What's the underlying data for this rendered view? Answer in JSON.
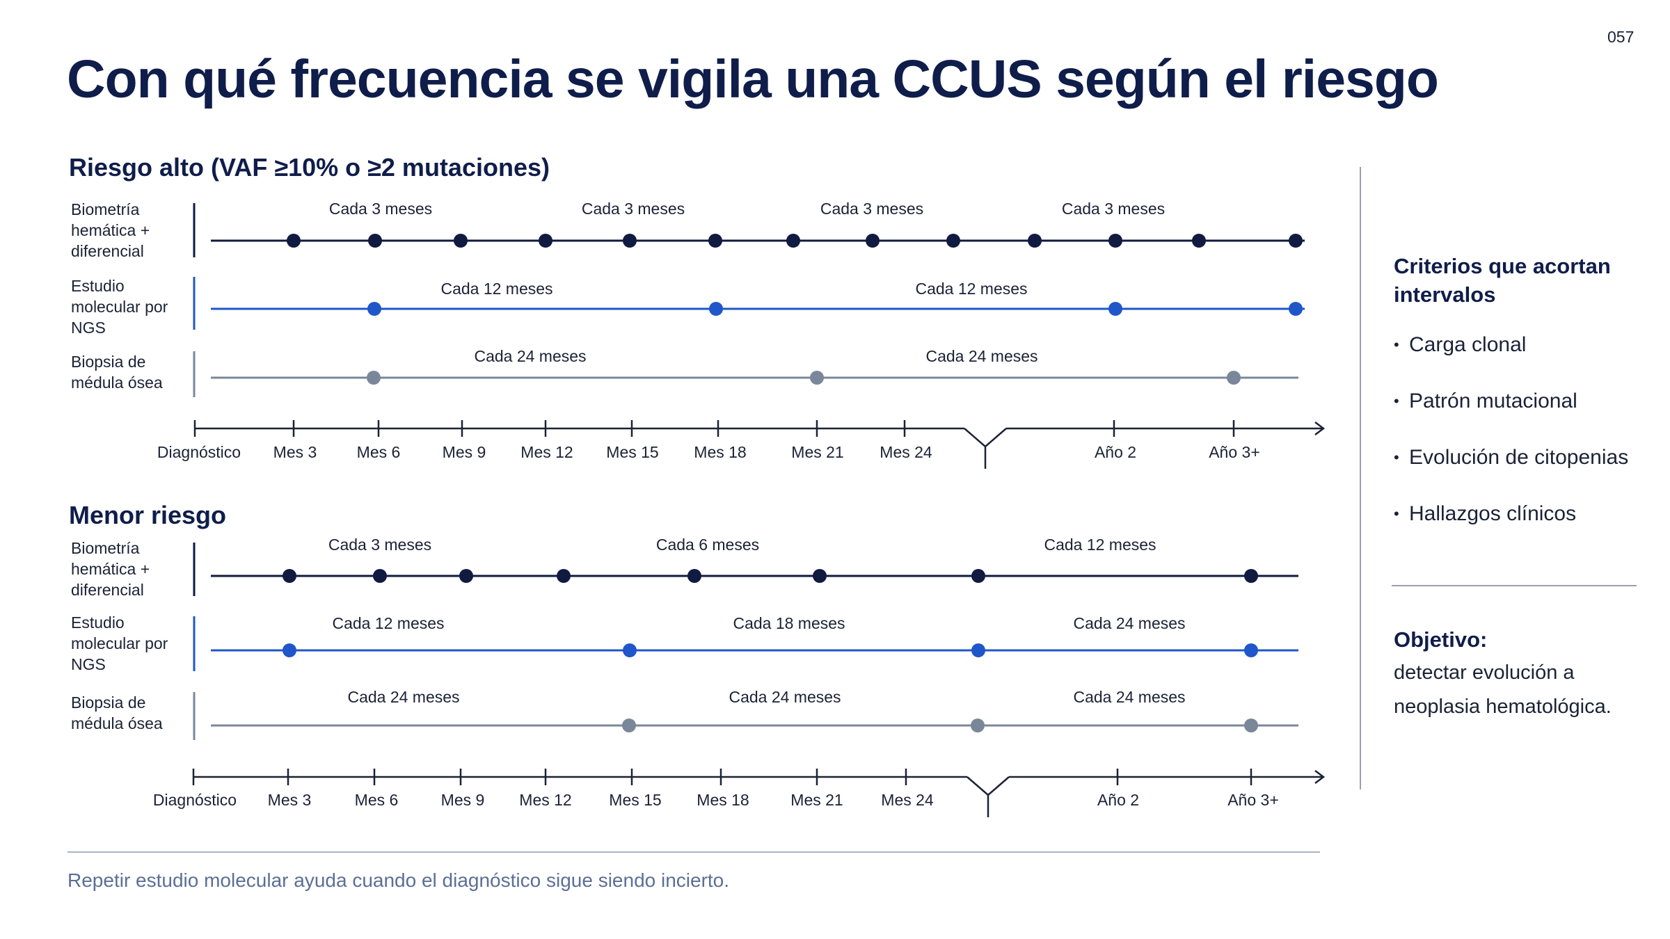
{
  "page_number": "057",
  "title": "Con qué frecuencia se vigila una CCUS según el riesgo",
  "colors": {
    "navy": "#111a40",
    "blue": "#1f56c9",
    "gray": "#7a879b",
    "axis": "#1b2236"
  },
  "sections": [
    {
      "title": "Riesgo alto (VAF ≥10% o ≥2 mutaciones)",
      "rows": [
        {
          "label": "Biometría hemática + diferencial",
          "color": "navy",
          "intervals": [
            "Cada 3 meses",
            "Cada 3 meses",
            "Cada 3 meses",
            "Cada 3 meses"
          ]
        },
        {
          "label": "Estudio molecular por NGS",
          "color": "blue",
          "intervals": [
            "Cada 12 meses",
            "Cada 12 meses"
          ]
        },
        {
          "label": "Biopsia de médula ósea",
          "color": "gray",
          "intervals": [
            "Cada 24 meses",
            "Cada 24 meses"
          ]
        }
      ],
      "axis_ticks": [
        "Diagnóstico",
        "Mes 3",
        "Mes 6",
        "Mes 9",
        "Mes 12",
        "Mes 15",
        "Mes 18",
        "Mes 21",
        "Mes 24",
        "Año 2",
        "Año 3+"
      ]
    },
    {
      "title": "Menor riesgo",
      "rows": [
        {
          "label": "Biometría hemática + diferencial",
          "color": "navy",
          "intervals": [
            "Cada 3 meses",
            "Cada 6 meses",
            "Cada 12 meses"
          ]
        },
        {
          "label": "Estudio molecular por NGS",
          "color": "blue",
          "intervals": [
            "Cada 12 meses",
            "Cada 18 meses",
            "Cada 24 meses"
          ]
        },
        {
          "label": "Biopsia de médula ósea",
          "color": "gray",
          "intervals": [
            "Cada 24 meses",
            "Cada 24 meses",
            "Cada 24 meses"
          ]
        }
      ],
      "axis_ticks": [
        "Diagnóstico",
        "Mes 3",
        "Mes 6",
        "Mes 9",
        "Mes 12",
        "Mes 15",
        "Mes 18",
        "Mes 21",
        "Mes 24",
        "Año 2",
        "Año 3+"
      ]
    }
  ],
  "sidebar": {
    "criteria_title": "Criterios que acortan intervalos",
    "criteria": [
      "Carga clonal",
      "Patrón mutacional",
      "Evolución de citopenias",
      "Hallazgos clínicos"
    ],
    "goal_title": "Objetivo:",
    "goal_text": "detectar evolución a neoplasia hematológica."
  },
  "footer": "Repetir estudio molecular ayuda cuando el diagnóstico sigue siendo incierto."
}
